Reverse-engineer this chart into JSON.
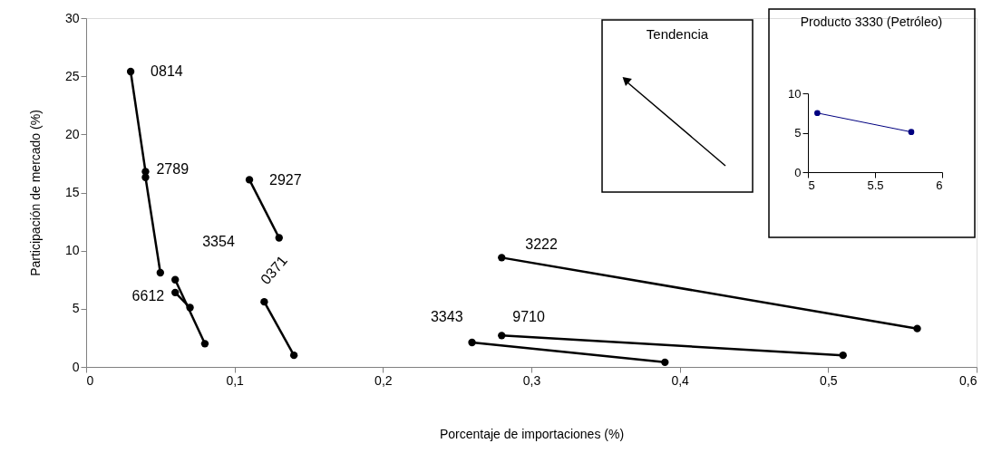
{
  "chart_data": [
    {
      "type": "line",
      "xlabel": "Porcentaje de importaciones (%)",
      "ylabel": "Participación de mercado (%)",
      "xlim": [
        0,
        0.6
      ],
      "xticks": [
        0,
        {
          "value": 0.1,
          "label": "0,1"
        },
        {
          "value": 0.2,
          "label": "0,2"
        },
        {
          "value": 0.3,
          "label": "0,3"
        },
        {
          "value": 0.4,
          "label": "0,4"
        },
        {
          "value": 0.5,
          "label": "0,5"
        },
        {
          "value": 0.6,
          "label": "0,6"
        }
      ],
      "ylim": [
        0,
        30
      ],
      "yticks": [
        0,
        5,
        10,
        15,
        20,
        25,
        30
      ],
      "grid": false,
      "marker": "circle",
      "line_style": "solid",
      "annotations": [
        "Tendencia"
      ],
      "series": [
        {
          "name": "0814",
          "color": "#000000",
          "x": [
            0.03,
            0.04
          ],
          "values": [
            25.4,
            16.8
          ]
        },
        {
          "name": "2789",
          "color": "#000000",
          "x": [
            0.04,
            0.05
          ],
          "values": [
            16.3,
            8.1
          ]
        },
        {
          "name": "2927",
          "color": "#000000",
          "x": [
            0.11,
            0.13
          ],
          "values": [
            16.1,
            11.1
          ]
        },
        {
          "name": "3354",
          "color": "#000000",
          "x": [
            0.06,
            0.08
          ],
          "values": [
            7.5,
            2.0
          ]
        },
        {
          "name": "6612",
          "color": "#000000",
          "x": [
            0.06,
            0.07
          ],
          "values": [
            6.4,
            5.1
          ]
        },
        {
          "name": "0371",
          "color": "#000000",
          "x": [
            0.12,
            0.14
          ],
          "values": [
            5.6,
            1.0
          ]
        },
        {
          "name": "3222",
          "color": "#000000",
          "x": [
            0.28,
            0.56
          ],
          "values": [
            9.4,
            3.3
          ]
        },
        {
          "name": "9710",
          "color": "#000000",
          "x": [
            0.28,
            0.51
          ],
          "values": [
            2.7,
            1.0
          ]
        },
        {
          "name": "3343",
          "color": "#000000",
          "x": [
            0.26,
            0.39
          ],
          "values": [
            2.1,
            0.4
          ]
        }
      ]
    },
    {
      "type": "line",
      "title": "Producto 3330 (Petróleo)",
      "xlim": [
        5,
        6
      ],
      "xticks": [
        5,
        5.5,
        6
      ],
      "ylim": [
        0,
        10
      ],
      "yticks": [
        0,
        5,
        10
      ],
      "grid": false,
      "marker": "circle",
      "series": [
        {
          "color": "#000080",
          "x": [
            5.07,
            5.77
          ],
          "values": [
            7.5,
            5.1
          ]
        }
      ]
    }
  ]
}
